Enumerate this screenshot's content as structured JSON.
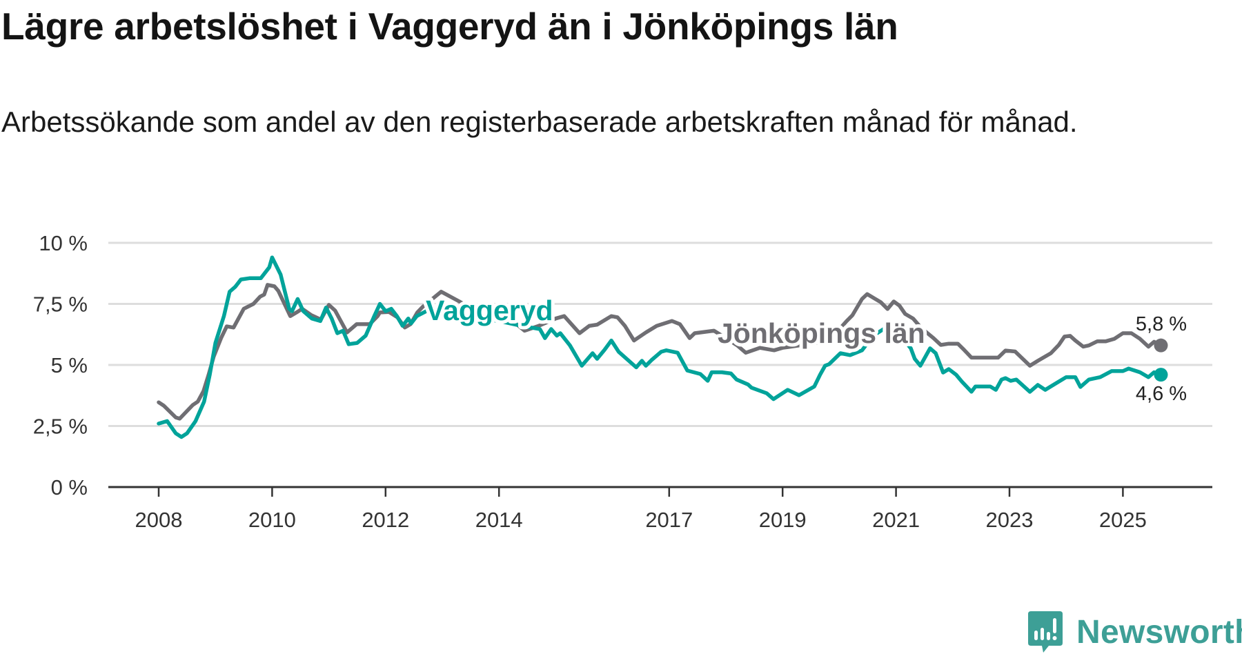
{
  "title": "Lägre arbetslöshet i Vaggeryd än i Jönköpings län",
  "subtitle": "Arbetssökande som andel av den registerbaserade arbetskraften månad för månad.",
  "brand": {
    "name": "Newsworthy"
  },
  "colors": {
    "vaggeryd": "#00a39a",
    "lan": "#6f6e73",
    "grid": "#dddddd",
    "axis": "#333333"
  },
  "chart_data": {
    "type": "line",
    "title": "Lägre arbetslöshet i Vaggeryd än i Jönköpings län",
    "xlabel": "",
    "ylabel": "",
    "ylim": [
      0,
      10
    ],
    "xlim": [
      2007.5,
      2026.5
    ],
    "grid": true,
    "yticks": [
      {
        "v": 0,
        "label": "0 %"
      },
      {
        "v": 2.5,
        "label": "2,5 %"
      },
      {
        "v": 5,
        "label": "5 %"
      },
      {
        "v": 7.5,
        "label": "7,5 %"
      },
      {
        "v": 10,
        "label": "10 %"
      }
    ],
    "xticks": [
      {
        "v": 2008,
        "label": "2008"
      },
      {
        "v": 2010,
        "label": "2010"
      },
      {
        "v": 2012,
        "label": "2012"
      },
      {
        "v": 2014,
        "label": "2014"
      },
      {
        "v": 2017,
        "label": "2017"
      },
      {
        "v": 2019,
        "label": "2019"
      },
      {
        "v": 2021,
        "label": "2021"
      },
      {
        "v": 2023,
        "label": "2023"
      },
      {
        "v": 2025,
        "label": "2025"
      }
    ],
    "series": [
      {
        "name": "Jönköpings län",
        "key": "lan",
        "end_label": "5,8 %",
        "points": [
          [
            2008.0,
            3.47
          ],
          [
            2008.09,
            3.33
          ],
          [
            2008.3,
            2.85
          ],
          [
            2008.37,
            2.8
          ],
          [
            2008.6,
            3.36
          ],
          [
            2008.69,
            3.5
          ],
          [
            2008.79,
            3.93
          ],
          [
            2008.88,
            4.6
          ],
          [
            2008.97,
            5.34
          ],
          [
            2009.1,
            6.1
          ],
          [
            2009.2,
            6.58
          ],
          [
            2009.32,
            6.53
          ],
          [
            2009.5,
            7.3
          ],
          [
            2009.67,
            7.5
          ],
          [
            2009.79,
            7.8
          ],
          [
            2009.86,
            7.88
          ],
          [
            2009.92,
            8.28
          ],
          [
            2010.04,
            8.22
          ],
          [
            2010.11,
            8.03
          ],
          [
            2010.32,
            7.0
          ],
          [
            2010.43,
            7.15
          ],
          [
            2010.53,
            7.3
          ],
          [
            2010.69,
            7.04
          ],
          [
            2010.86,
            6.86
          ],
          [
            2011.0,
            7.46
          ],
          [
            2011.11,
            7.23
          ],
          [
            2011.32,
            6.33
          ],
          [
            2011.49,
            6.67
          ],
          [
            2011.72,
            6.67
          ],
          [
            2011.86,
            7.0
          ],
          [
            2011.9,
            7.15
          ],
          [
            2012.06,
            7.17
          ],
          [
            2012.21,
            6.95
          ],
          [
            2012.34,
            6.53
          ],
          [
            2012.44,
            6.67
          ],
          [
            2012.56,
            7.15
          ],
          [
            2012.65,
            7.37
          ],
          [
            2012.98,
            8.0
          ],
          [
            2013.3,
            7.6
          ],
          [
            2013.6,
            7.2
          ],
          [
            2013.9,
            6.9
          ],
          [
            2014.2,
            6.8
          ],
          [
            2014.31,
            6.67
          ],
          [
            2014.45,
            6.4
          ],
          [
            2014.7,
            6.6
          ],
          [
            2015.0,
            6.9
          ],
          [
            2015.15,
            7.0
          ],
          [
            2015.42,
            6.3
          ],
          [
            2015.59,
            6.6
          ],
          [
            2015.73,
            6.65
          ],
          [
            2015.98,
            7.0
          ],
          [
            2016.09,
            6.95
          ],
          [
            2016.22,
            6.6
          ],
          [
            2016.38,
            6.0
          ],
          [
            2016.59,
            6.33
          ],
          [
            2016.78,
            6.6
          ],
          [
            2017.05,
            6.8
          ],
          [
            2017.19,
            6.67
          ],
          [
            2017.36,
            6.1
          ],
          [
            2017.45,
            6.3
          ],
          [
            2017.79,
            6.4
          ],
          [
            2018.0,
            6.1
          ],
          [
            2018.2,
            5.8
          ],
          [
            2018.35,
            5.5
          ],
          [
            2018.6,
            5.7
          ],
          [
            2018.85,
            5.6
          ],
          [
            2019.0,
            5.7
          ],
          [
            2019.3,
            5.8
          ],
          [
            2019.6,
            5.9
          ],
          [
            2019.9,
            6.2
          ],
          [
            2020.13,
            6.8
          ],
          [
            2020.23,
            7.03
          ],
          [
            2020.4,
            7.7
          ],
          [
            2020.49,
            7.9
          ],
          [
            2020.73,
            7.57
          ],
          [
            2020.85,
            7.29
          ],
          [
            2020.96,
            7.6
          ],
          [
            2021.06,
            7.43
          ],
          [
            2021.16,
            7.09
          ],
          [
            2021.3,
            6.9
          ],
          [
            2021.45,
            6.5
          ],
          [
            2021.66,
            6.1
          ],
          [
            2021.79,
            5.82
          ],
          [
            2021.93,
            5.87
          ],
          [
            2022.09,
            5.87
          ],
          [
            2022.2,
            5.62
          ],
          [
            2022.33,
            5.3
          ],
          [
            2022.8,
            5.3
          ],
          [
            2022.93,
            5.59
          ],
          [
            2023.1,
            5.55
          ],
          [
            2023.36,
            4.97
          ],
          [
            2023.5,
            5.17
          ],
          [
            2023.73,
            5.48
          ],
          [
            2023.87,
            5.82
          ],
          [
            2023.97,
            6.16
          ],
          [
            2024.07,
            6.19
          ],
          [
            2024.16,
            6.0
          ],
          [
            2024.3,
            5.75
          ],
          [
            2024.4,
            5.8
          ],
          [
            2024.55,
            5.97
          ],
          [
            2024.7,
            5.97
          ],
          [
            2024.85,
            6.07
          ],
          [
            2025.0,
            6.3
          ],
          [
            2025.15,
            6.3
          ],
          [
            2025.3,
            6.07
          ],
          [
            2025.45,
            5.75
          ],
          [
            2025.55,
            5.95
          ],
          [
            2025.67,
            5.8
          ]
        ]
      },
      {
        "name": "Vaggeryd",
        "key": "vaggeryd",
        "end_label": "4,6 %",
        "points": [
          [
            2008.0,
            2.6
          ],
          [
            2008.15,
            2.7
          ],
          [
            2008.3,
            2.2
          ],
          [
            2008.4,
            2.05
          ],
          [
            2008.5,
            2.2
          ],
          [
            2008.65,
            2.7
          ],
          [
            2008.8,
            3.5
          ],
          [
            2008.9,
            4.6
          ],
          [
            2009.0,
            5.9
          ],
          [
            2009.15,
            7.0
          ],
          [
            2009.25,
            8.0
          ],
          [
            2009.35,
            8.2
          ],
          [
            2009.45,
            8.5
          ],
          [
            2009.6,
            8.55
          ],
          [
            2009.8,
            8.55
          ],
          [
            2009.95,
            9.0
          ],
          [
            2010.0,
            9.4
          ],
          [
            2010.15,
            8.7
          ],
          [
            2010.3,
            7.3
          ],
          [
            2010.35,
            7.2
          ],
          [
            2010.45,
            7.7
          ],
          [
            2010.55,
            7.2
          ],
          [
            2010.7,
            6.9
          ],
          [
            2010.85,
            6.8
          ],
          [
            2010.95,
            7.35
          ],
          [
            2011.05,
            6.9
          ],
          [
            2011.15,
            6.3
          ],
          [
            2011.25,
            6.4
          ],
          [
            2011.35,
            5.85
          ],
          [
            2011.5,
            5.9
          ],
          [
            2011.65,
            6.2
          ],
          [
            2011.8,
            7.0
          ],
          [
            2011.9,
            7.5
          ],
          [
            2012.0,
            7.2
          ],
          [
            2012.1,
            7.3
          ],
          [
            2012.2,
            7.0
          ],
          [
            2012.3,
            6.6
          ],
          [
            2012.4,
            6.9
          ],
          [
            2012.45,
            6.7
          ],
          [
            2012.55,
            7.0
          ],
          [
            2012.8,
            7.3
          ],
          [
            2013.2,
            7.2
          ],
          [
            2013.6,
            6.9
          ],
          [
            2014.0,
            6.8
          ],
          [
            2014.4,
            6.6
          ],
          [
            2014.72,
            6.47
          ],
          [
            2014.81,
            6.1
          ],
          [
            2014.92,
            6.47
          ],
          [
            2015.02,
            6.2
          ],
          [
            2015.08,
            6.3
          ],
          [
            2015.25,
            5.8
          ],
          [
            2015.46,
            4.97
          ],
          [
            2015.65,
            5.48
          ],
          [
            2015.73,
            5.25
          ],
          [
            2015.86,
            5.62
          ],
          [
            2015.98,
            6.0
          ],
          [
            2016.11,
            5.54
          ],
          [
            2016.42,
            4.9
          ],
          [
            2016.52,
            5.17
          ],
          [
            2016.59,
            4.97
          ],
          [
            2016.69,
            5.2
          ],
          [
            2016.86,
            5.54
          ],
          [
            2016.95,
            5.6
          ],
          [
            2017.15,
            5.5
          ],
          [
            2017.32,
            4.77
          ],
          [
            2017.55,
            4.63
          ],
          [
            2017.68,
            4.35
          ],
          [
            2017.75,
            4.7
          ],
          [
            2017.93,
            4.7
          ],
          [
            2018.09,
            4.65
          ],
          [
            2018.19,
            4.4
          ],
          [
            2018.39,
            4.2
          ],
          [
            2018.45,
            4.07
          ],
          [
            2018.72,
            3.84
          ],
          [
            2018.84,
            3.6
          ],
          [
            2019.09,
            3.98
          ],
          [
            2019.29,
            3.76
          ],
          [
            2019.56,
            4.12
          ],
          [
            2019.66,
            4.6
          ],
          [
            2019.75,
            4.97
          ],
          [
            2019.82,
            5.03
          ],
          [
            2020.02,
            5.48
          ],
          [
            2020.19,
            5.4
          ],
          [
            2020.4,
            5.6
          ],
          [
            2020.6,
            6.2
          ],
          [
            2020.8,
            6.5
          ],
          [
            2021.0,
            6.4
          ],
          [
            2021.26,
            5.68
          ],
          [
            2021.33,
            5.25
          ],
          [
            2021.43,
            4.97
          ],
          [
            2021.6,
            5.68
          ],
          [
            2021.7,
            5.48
          ],
          [
            2021.83,
            4.69
          ],
          [
            2021.93,
            4.83
          ],
          [
            2022.06,
            4.6
          ],
          [
            2022.16,
            4.32
          ],
          [
            2022.33,
            3.9
          ],
          [
            2022.4,
            4.12
          ],
          [
            2022.66,
            4.12
          ],
          [
            2022.76,
            3.98
          ],
          [
            2022.86,
            4.4
          ],
          [
            2022.93,
            4.46
          ],
          [
            2023.02,
            4.35
          ],
          [
            2023.12,
            4.4
          ],
          [
            2023.36,
            3.9
          ],
          [
            2023.5,
            4.18
          ],
          [
            2023.63,
            3.98
          ],
          [
            2023.87,
            4.32
          ],
          [
            2024.0,
            4.5
          ],
          [
            2024.16,
            4.5
          ],
          [
            2024.25,
            4.1
          ],
          [
            2024.4,
            4.4
          ],
          [
            2024.6,
            4.5
          ],
          [
            2024.8,
            4.75
          ],
          [
            2025.0,
            4.75
          ],
          [
            2025.1,
            4.85
          ],
          [
            2025.3,
            4.7
          ],
          [
            2025.45,
            4.5
          ],
          [
            2025.55,
            4.7
          ],
          [
            2025.67,
            4.6
          ]
        ]
      }
    ]
  }
}
